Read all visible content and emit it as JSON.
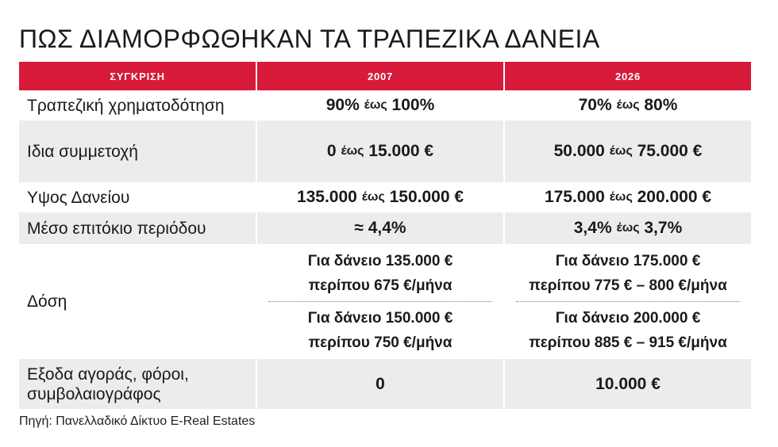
{
  "title": "ΠΩΣ ΔΙΑΜΟΡΦΩΘΗΚΑΝ ΤΑ ΤΡΑΠΕΖΙΚΑ ΔΑΝΕΙΑ",
  "table": {
    "headers": [
      "ΣΥΓΚΡΙΣΗ",
      "2007",
      "2026"
    ],
    "rows": [
      {
        "label": "Τραπεζική χρηματοδότηση",
        "y2007": {
          "a": "90%",
          "w": "έως",
          "b": "100%"
        },
        "y2026": {
          "a": "70%",
          "w": "έως",
          "b": "80%"
        }
      },
      {
        "label": "Ιδια συμμετοχή",
        "y2007": {
          "a": "0",
          "w": "έως",
          "b": "15.000 €"
        },
        "y2026": {
          "a": "50.000",
          "w": "έως",
          "b": "75.000 €"
        }
      },
      {
        "label": "Υψος Δανείου",
        "y2007": {
          "a": "135.000",
          "w": "έως",
          "b": "150.000 €"
        },
        "y2026": {
          "a": "175.000",
          "w": "έως",
          "b": "200.000 €"
        }
      },
      {
        "label": "Μέσο επιτόκιο περιόδου",
        "y2007": {
          "a": "≈ 4,4%"
        },
        "y2026": {
          "a": "3,4%",
          "w": "έως",
          "b": "3,7%"
        }
      }
    ],
    "dose": {
      "label": "Δόση",
      "y2007": [
        {
          "line1": "Για δάνειο 135.000 €",
          "line2": "περίπου 675 €/μήνα"
        },
        {
          "line1": "Για δάνειο 150.000 €",
          "line2": "περίπου 750 €/μήνα"
        }
      ],
      "y2026": [
        {
          "line1": "Για δάνειο 175.000 €",
          "line2": "περίπου 775 € – 800 €/μήνα"
        },
        {
          "line1": "Για δάνειο 200.000 €",
          "line2": "περίπου 885 € – 915 €/μήνα"
        }
      ]
    },
    "costs": {
      "label_line1": "Εξοδα αγοράς, φόροι,",
      "label_line2": "συμβολαιογράφος",
      "y2007": "0",
      "y2026": "10.000 €"
    }
  },
  "source": "Πηγή: Πανελλαδικό Δίκτυο  E-Real Estates",
  "colors": {
    "header": "#d7193a",
    "shade": "#ececec",
    "text": "#1a1a1a"
  }
}
